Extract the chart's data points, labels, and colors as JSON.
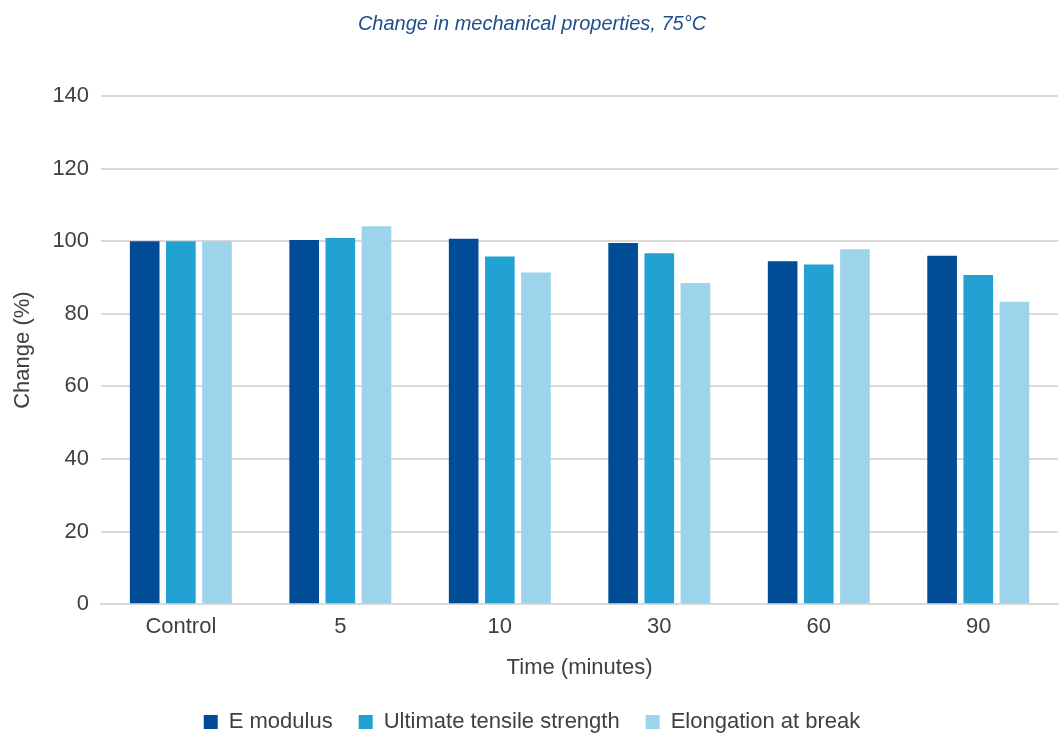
{
  "chart_data": {
    "type": "bar",
    "title": "Change in mechanical properties, 75°C",
    "xlabel": "Time (minutes)",
    "ylabel": "Change (%)",
    "categories": [
      "Control",
      "5",
      "10",
      "30",
      "60",
      "90"
    ],
    "series": [
      {
        "name": "E modulus",
        "color": "#004c97",
        "values": [
          100,
          100.3,
          100.7,
          99.5,
          94.5,
          96.0
        ]
      },
      {
        "name": "Ultimate tensile strength",
        "color": "#22a1d3",
        "values": [
          100,
          100.9,
          95.8,
          96.7,
          93.6,
          90.7
        ]
      },
      {
        "name": "Elongation at break",
        "color": "#9dd4eb",
        "values": [
          100,
          104.1,
          91.4,
          88.5,
          97.8,
          83.3
        ]
      }
    ],
    "ylim": [
      0,
      140
    ],
    "yticks": [
      0,
      20,
      40,
      60,
      80,
      100,
      120,
      140
    ],
    "grid": "y",
    "legend": "bottom"
  }
}
